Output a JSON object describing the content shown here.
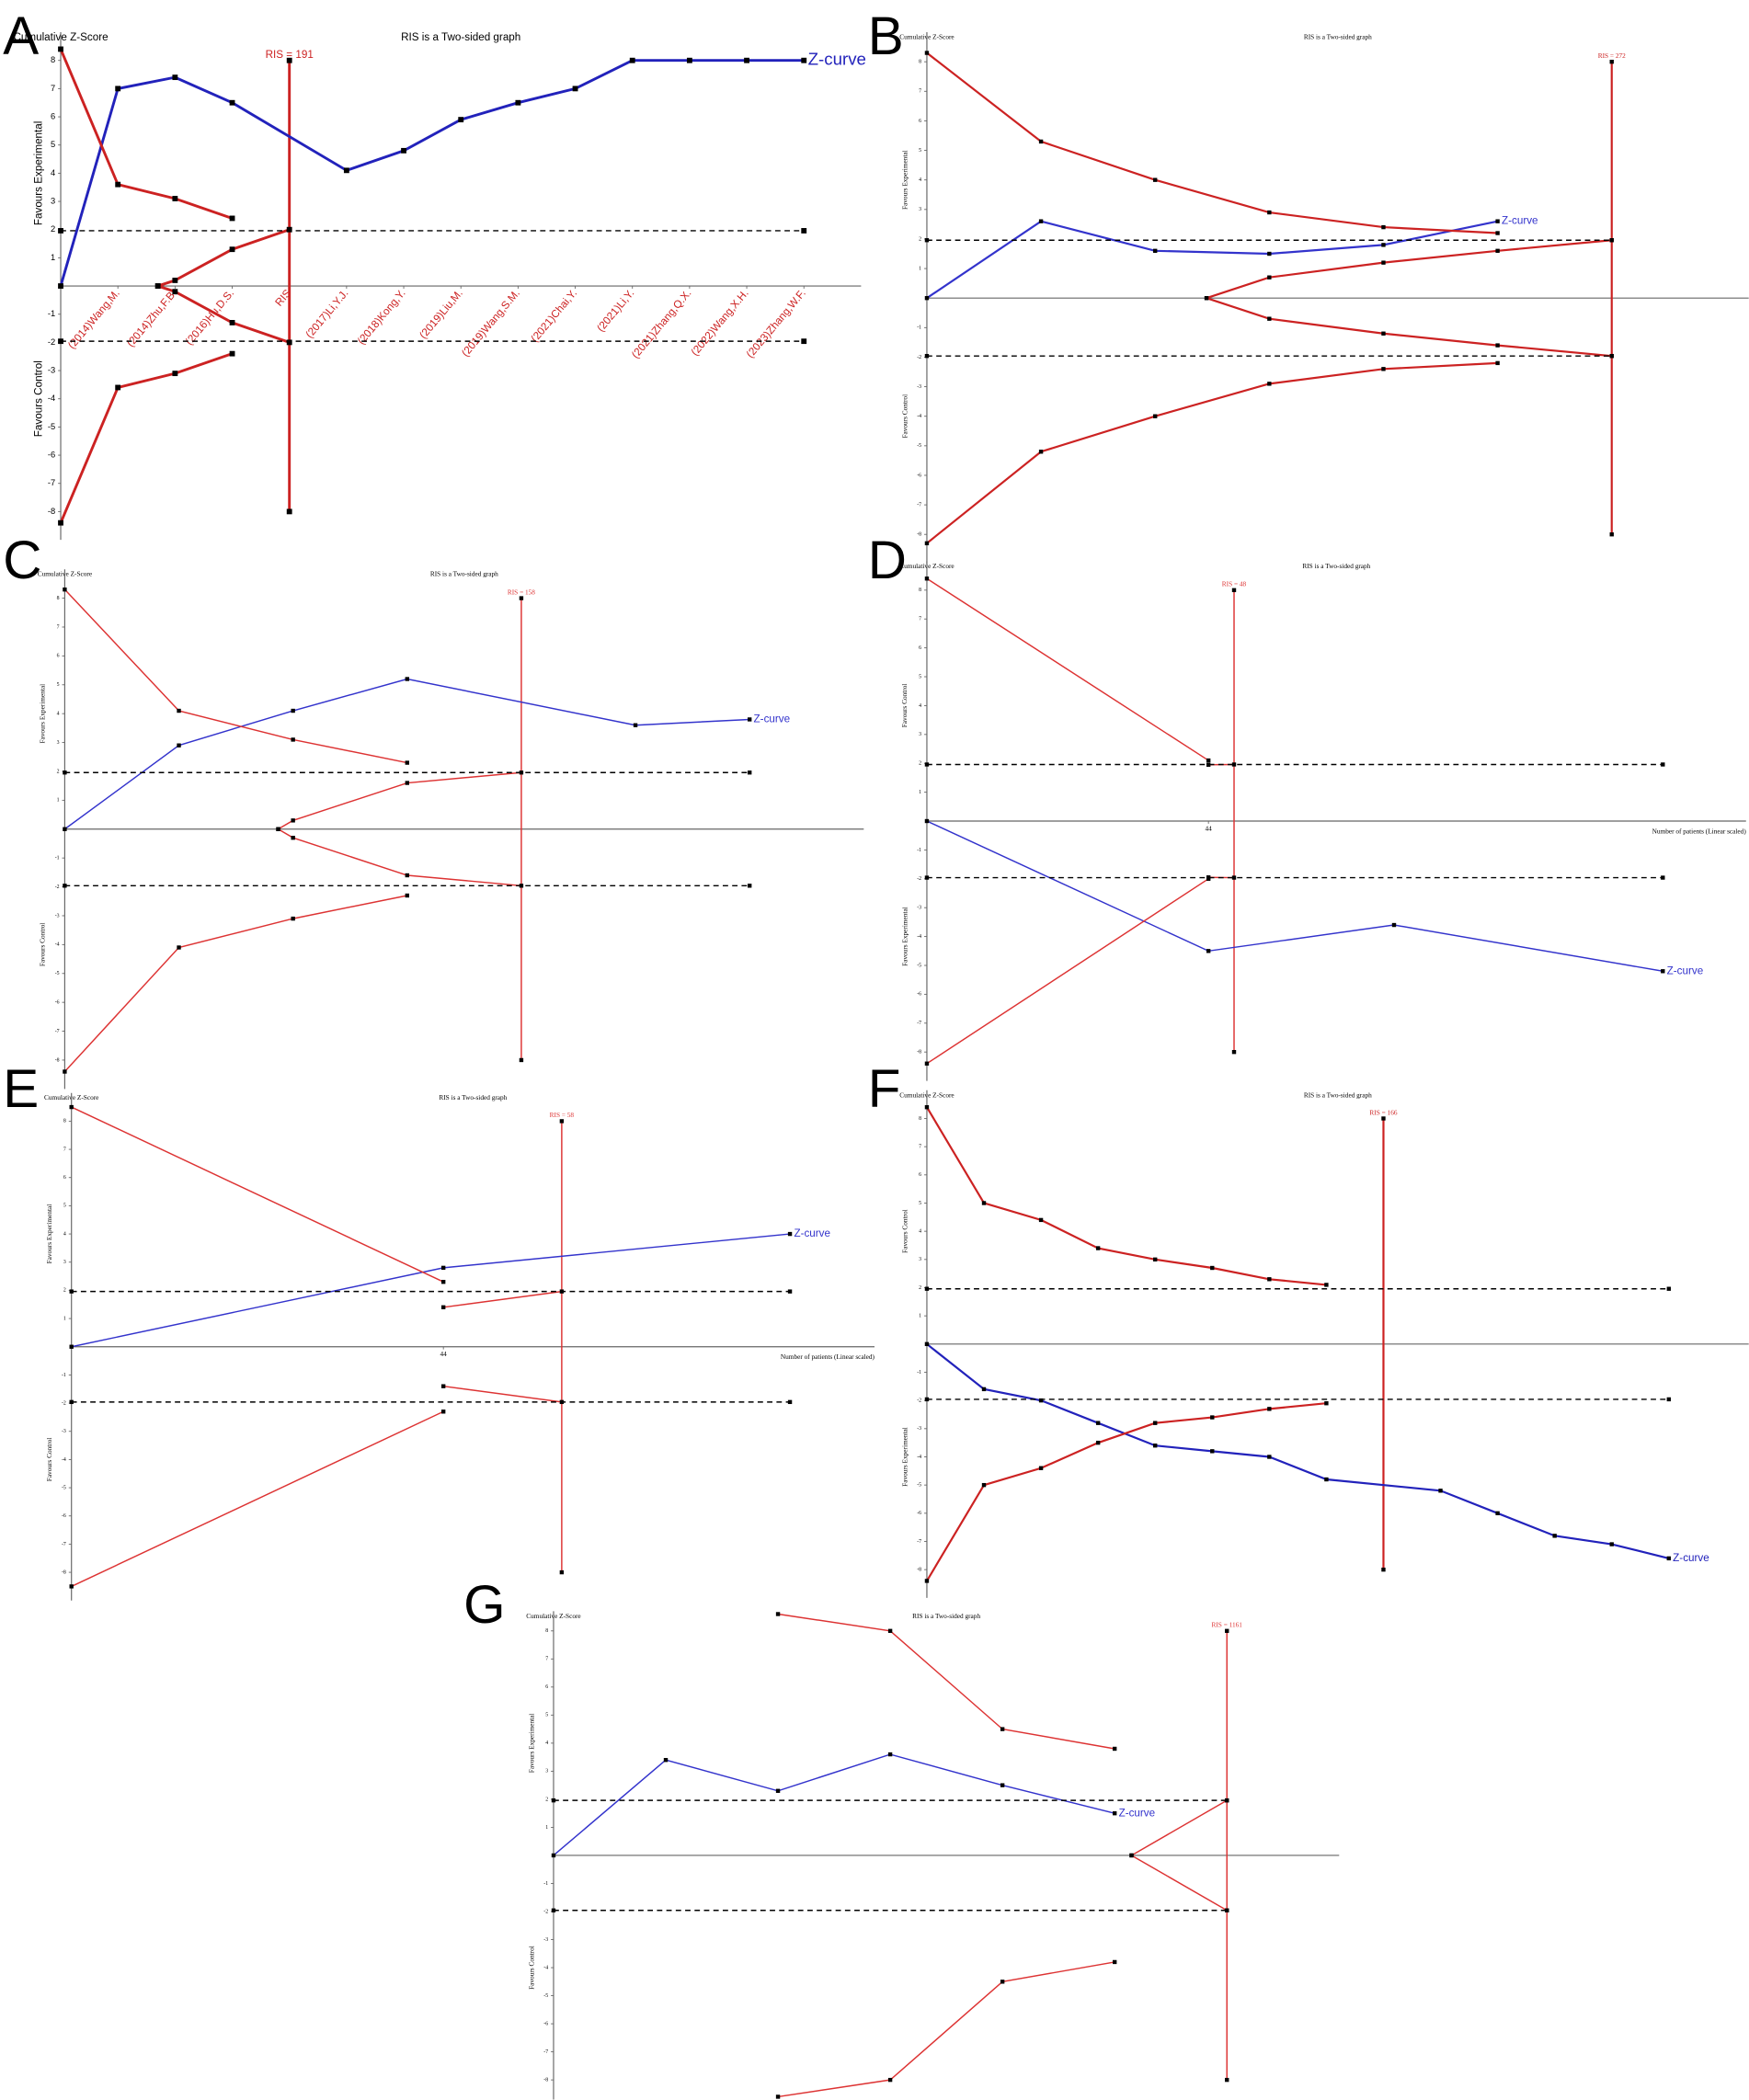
{
  "chart_data": [
    {
      "type": "line",
      "panel": "A",
      "title": "RIS is a Two-sided graph",
      "y_label": "Cumulative Z-Score",
      "upper_label": "Favours Experimental",
      "lower_label": "Favours Control",
      "categories": [
        null,
        "(2014)Wang,M.",
        "(2014)Zhu,F.B.",
        "(2016)Hu,D.S.",
        "RIS",
        "(2017)Li,Y.J.",
        "(2018)Kong,Y.",
        "(2019)Liu,M.",
        "(2019)Wang,S.M.",
        "(2021)Chai,Y.",
        "(2021)Li,Y.",
        "(2021)Zhang,Q.X.",
        "(2022)Wang,X.H.",
        "(2023)Zhang,W.F."
      ],
      "xlim": [
        0,
        14
      ],
      "ylim": [
        -9,
        9
      ],
      "yticks": [
        -8,
        -7,
        -6,
        -5,
        -4,
        -3,
        -2,
        -1,
        1,
        2,
        3,
        4,
        5,
        6,
        7,
        8
      ],
      "ris": {
        "x": 4,
        "label": "RIS = 191",
        "from": -8,
        "to": 8,
        "color": "#cc2222"
      },
      "series": [
        {
          "name": "Z-curve",
          "color": "#2222bb",
          "x": [
            0,
            1,
            2,
            3,
            5,
            6,
            7,
            8,
            9,
            10,
            11,
            12,
            13
          ],
          "values": [
            0,
            7,
            7.4,
            6.5,
            4.1,
            4.8,
            5.9,
            6.5,
            7,
            8,
            8,
            8,
            8
          ]
        },
        {
          "color": "#cc2222",
          "x": [
            0,
            1,
            2,
            3
          ],
          "values": [
            8.4,
            3.6,
            3.1,
            2.4
          ]
        },
        {
          "color": "#cc2222",
          "x": [
            0,
            1,
            2,
            3
          ],
          "values": [
            -8.4,
            -3.6,
            -3.1,
            -2.4
          ]
        },
        {
          "color": "#cc2222",
          "x": [
            1.7,
            2,
            3,
            4
          ],
          "values": [
            0,
            0.2,
            1.3,
            2
          ]
        },
        {
          "color": "#cc2222",
          "x": [
            1.7,
            2,
            3,
            4
          ],
          "values": [
            0,
            -0.2,
            -1.3,
            -2
          ]
        },
        {
          "color": "#000000",
          "dashed": true,
          "x": [
            0,
            13
          ],
          "values": [
            1.96,
            1.96
          ]
        },
        {
          "color": "#000000",
          "dashed": true,
          "x": [
            0,
            13
          ],
          "values": [
            -1.96,
            -1.96
          ]
        }
      ]
    },
    {
      "type": "line",
      "panel": "B",
      "title": "RIS is a Two-sided graph",
      "y_label": "Cumulative Z-Score",
      "upper_label": "Favours Experimental",
      "lower_label": "Favours Control",
      "xlim": [
        0,
        7.2
      ],
      "ylim": [
        -9,
        9
      ],
      "yticks": [
        -8,
        -7,
        -6,
        -5,
        -4,
        -3,
        -2,
        -1,
        1,
        2,
        3,
        4,
        5,
        6,
        7,
        8
      ],
      "ris": {
        "x": 6,
        "label": "RIS = 272",
        "from": -8,
        "to": 8,
        "color": "#cc2222"
      },
      "series": [
        {
          "name": "Z-curve",
          "color": "#3333cc",
          "x": [
            0,
            1,
            2,
            3,
            4,
            5
          ],
          "values": [
            0,
            2.6,
            1.6,
            1.5,
            1.8,
            2.6
          ]
        },
        {
          "color": "#cc2222",
          "x": [
            0,
            1,
            2,
            3,
            4,
            5
          ],
          "values": [
            8.3,
            5.3,
            4,
            2.9,
            2.4,
            2.2
          ]
        },
        {
          "color": "#cc2222",
          "x": [
            0,
            1,
            2,
            3,
            4,
            5
          ],
          "values": [
            -8.3,
            -5.2,
            -4,
            -2.9,
            -2.4,
            -2.2
          ]
        },
        {
          "color": "#cc2222",
          "x": [
            2.45,
            3,
            4,
            5,
            6
          ],
          "values": [
            0,
            0.7,
            1.2,
            1.6,
            1.96
          ]
        },
        {
          "color": "#cc2222",
          "x": [
            2.45,
            3,
            4,
            5,
            6
          ],
          "values": [
            0,
            -0.7,
            -1.2,
            -1.6,
            -1.96
          ]
        },
        {
          "color": "#000000",
          "dashed": true,
          "x": [
            0,
            6
          ],
          "values": [
            1.96,
            1.96
          ]
        },
        {
          "color": "#000000",
          "dashed": true,
          "x": [
            0,
            6
          ],
          "values": [
            -1.96,
            -1.96
          ]
        }
      ]
    },
    {
      "type": "line",
      "panel": "C",
      "title": "RIS is a Two-sided graph",
      "y_label": "Cumulative Z-Score",
      "upper_label": "Favours Experimental",
      "lower_label": "Favours Control",
      "xlim": [
        0,
        7
      ],
      "ylim": [
        -9,
        9
      ],
      "yticks": [
        -8,
        -7,
        -6,
        -5,
        -4,
        -3,
        -2,
        -1,
        1,
        2,
        3,
        4,
        5,
        6,
        7,
        8
      ],
      "ris": {
        "x": 4,
        "label": "RIS = 158",
        "from": -8,
        "to": 8,
        "color": "#dd3333"
      },
      "series": [
        {
          "name": "Z-curve",
          "color": "#3333cc",
          "x": [
            0,
            1,
            2,
            3,
            5,
            6
          ],
          "values": [
            0,
            2.9,
            4.1,
            5.2,
            3.6,
            3.8
          ]
        },
        {
          "color": "#dd3333",
          "x": [
            0,
            1,
            2,
            3
          ],
          "values": [
            8.3,
            4.1,
            3.1,
            2.3
          ]
        },
        {
          "color": "#dd3333",
          "x": [
            0,
            1,
            2,
            3
          ],
          "values": [
            -8.4,
            -4.1,
            -3.1,
            -2.3
          ]
        },
        {
          "color": "#dd3333",
          "x": [
            1.87,
            2,
            3,
            4
          ],
          "values": [
            0,
            0.3,
            1.6,
            1.96
          ]
        },
        {
          "color": "#dd3333",
          "x": [
            1.87,
            2,
            3,
            4
          ],
          "values": [
            0,
            -0.3,
            -1.6,
            -1.96
          ]
        },
        {
          "color": "#000000",
          "dashed": true,
          "x": [
            0,
            6
          ],
          "values": [
            1.96,
            1.96
          ]
        },
        {
          "color": "#000000",
          "dashed": true,
          "x": [
            0,
            6
          ],
          "values": [
            -1.96,
            -1.96
          ]
        }
      ]
    },
    {
      "type": "line",
      "panel": "D",
      "title": "RIS is a Two-sided graph",
      "y_label": "Cumulative Z-Score",
      "upper_label": "Favours Control",
      "lower_label": "Favours Experimental",
      "x_label": "Number of patients (Linear scaled)",
      "xlim": [
        0,
        128
      ],
      "xticks": [
        44
      ],
      "ylim": [
        -9,
        9
      ],
      "yticks": [
        -8,
        -7,
        -6,
        -5,
        -4,
        -3,
        -2,
        -1,
        1,
        2,
        3,
        4,
        5,
        6,
        7,
        8
      ],
      "ris": {
        "x": 48,
        "label": "RIS = 48",
        "from": -8,
        "to": 8,
        "color": "#dd3333"
      },
      "series": [
        {
          "name": "Z-curve",
          "color": "#3333cc",
          "x": [
            0,
            44,
            73,
            115
          ],
          "values": [
            0,
            -4.5,
            -3.6,
            -5.2
          ]
        },
        {
          "color": "#dd3333",
          "x": [
            0,
            44
          ],
          "values": [
            8.4,
            2.1
          ]
        },
        {
          "color": "#dd3333",
          "x": [
            0,
            44
          ],
          "values": [
            -8.4,
            -2
          ]
        },
        {
          "color": "#dd3333",
          "x": [
            44,
            48
          ],
          "values": [
            1.95,
            1.96
          ]
        },
        {
          "color": "#dd3333",
          "x": [
            44,
            48
          ],
          "values": [
            -1.95,
            -1.96
          ]
        },
        {
          "color": "#000000",
          "dashed": true,
          "x": [
            0,
            115
          ],
          "values": [
            1.96,
            1.96
          ]
        },
        {
          "color": "#000000",
          "dashed": true,
          "x": [
            0,
            115
          ],
          "values": [
            -1.96,
            -1.96
          ]
        }
      ]
    },
    {
      "type": "line",
      "panel": "E",
      "title": "RIS is a Two-sided graph",
      "y_label": "Cumulative Z-Score",
      "upper_label": "Favours Experimental",
      "lower_label": "Favours Control",
      "x_label": "Number of patients (Linear scaled)",
      "xlim": [
        0,
        95
      ],
      "xticks": [
        44
      ],
      "ylim": [
        -9,
        9
      ],
      "yticks": [
        -8,
        -7,
        -6,
        -5,
        -4,
        -3,
        -2,
        -1,
        1,
        2,
        3,
        4,
        5,
        6,
        7,
        8
      ],
      "ris": {
        "x": 58,
        "label": "RIS = 58",
        "from": -8,
        "to": 8,
        "color": "#dd3333"
      },
      "series": [
        {
          "name": "Z-curve",
          "color": "#3333cc",
          "x": [
            0,
            44,
            85
          ],
          "values": [
            0,
            2.8,
            4
          ]
        },
        {
          "color": "#dd3333",
          "x": [
            0,
            44
          ],
          "values": [
            8.5,
            2.3
          ]
        },
        {
          "color": "#dd3333",
          "x": [
            0,
            44
          ],
          "values": [
            -8.5,
            -2.3
          ]
        },
        {
          "color": "#dd3333",
          "x": [
            44,
            58
          ],
          "values": [
            1.4,
            1.96
          ]
        },
        {
          "color": "#dd3333",
          "x": [
            44,
            58
          ],
          "values": [
            -1.4,
            -1.96
          ]
        },
        {
          "color": "#000000",
          "dashed": true,
          "x": [
            0,
            85
          ],
          "values": [
            1.96,
            1.96
          ]
        },
        {
          "color": "#000000",
          "dashed": true,
          "x": [
            0,
            85
          ],
          "values": [
            -1.96,
            -1.96
          ]
        }
      ]
    },
    {
      "type": "line",
      "panel": "F",
      "title": "RIS is a Two-sided graph",
      "y_label": "Cumulative Z-Score",
      "upper_label": "Favours Control",
      "lower_label": "Favours Experimental",
      "xlim": [
        0,
        14.4
      ],
      "ylim": [
        -9,
        9
      ],
      "yticks": [
        -8,
        -7,
        -6,
        -5,
        -4,
        -3,
        -2,
        -1,
        1,
        2,
        3,
        4,
        5,
        6,
        7,
        8
      ],
      "ris": {
        "x": 8,
        "label": "RIS = 166",
        "from": -8,
        "to": 8,
        "color": "#cc2222"
      },
      "series": [
        {
          "name": "Z-curve",
          "color": "#2222bb",
          "x": [
            0,
            1,
            2,
            3,
            4,
            5,
            6,
            7,
            9,
            10,
            11,
            12,
            13
          ],
          "values": [
            0,
            -1.6,
            -2,
            -2.8,
            -3.6,
            -3.8,
            -4,
            -4.8,
            -5.2,
            -6,
            -6.8,
            -7.1,
            -7.6
          ]
        },
        {
          "color": "#cc2222",
          "x": [
            0,
            1,
            2,
            3,
            4,
            5,
            6,
            7
          ],
          "values": [
            8.4,
            5,
            4.4,
            3.4,
            3,
            2.7,
            2.3,
            2.1
          ]
        },
        {
          "color": "#cc2222",
          "x": [
            0,
            1,
            2,
            3,
            4,
            5,
            6,
            7
          ],
          "values": [
            -8.4,
            -5,
            -4.4,
            -3.5,
            -2.8,
            -2.6,
            -2.3,
            -2.1
          ]
        },
        {
          "color": "#000000",
          "dashed": true,
          "x": [
            0,
            13
          ],
          "values": [
            1.96,
            1.96
          ]
        },
        {
          "color": "#000000",
          "dashed": true,
          "x": [
            0,
            13
          ],
          "values": [
            -1.96,
            -1.96
          ]
        }
      ]
    },
    {
      "type": "line",
      "panel": "G",
      "title": "RIS is a Two-sided graph",
      "y_label": "Cumulative Z-Score",
      "upper_label": "Favours Experimental",
      "lower_label": "Favours Control",
      "xlim": [
        0,
        7
      ],
      "ylim": [
        -8.7,
        8.7
      ],
      "yticks": [
        -8,
        -7,
        -6,
        -5,
        -4,
        -3,
        -2,
        -1,
        1,
        2,
        3,
        4,
        5,
        6,
        7,
        8
      ],
      "ris": {
        "x": 6,
        "label": "RIS = 1161",
        "from": -8,
        "to": 8,
        "color": "#dd3333"
      },
      "series": [
        {
          "name": "Z-curve",
          "color": "#3333cc",
          "x": [
            0,
            1,
            2,
            3,
            4,
            5
          ],
          "values": [
            0,
            3.4,
            2.3,
            3.6,
            2.5,
            1.5
          ]
        },
        {
          "color": "#dd3333",
          "x": [
            2,
            3,
            4,
            5
          ],
          "values": [
            8.6,
            8,
            4.5,
            3.8
          ]
        },
        {
          "color": "#dd3333",
          "x": [
            2,
            3,
            4,
            5
          ],
          "values": [
            -8.6,
            -8,
            -4.5,
            -3.8
          ]
        },
        {
          "color": "#dd3333",
          "x": [
            5.15,
            6
          ],
          "values": [
            0,
            1.96
          ]
        },
        {
          "color": "#dd3333",
          "x": [
            5.15,
            6
          ],
          "values": [
            0,
            -1.96
          ]
        },
        {
          "color": "#000000",
          "dashed": true,
          "x": [
            0,
            6
          ],
          "values": [
            1.96,
            1.96
          ]
        },
        {
          "color": "#000000",
          "dashed": true,
          "x": [
            0,
            6
          ],
          "values": [
            -1.96,
            -1.96
          ]
        }
      ]
    }
  ]
}
